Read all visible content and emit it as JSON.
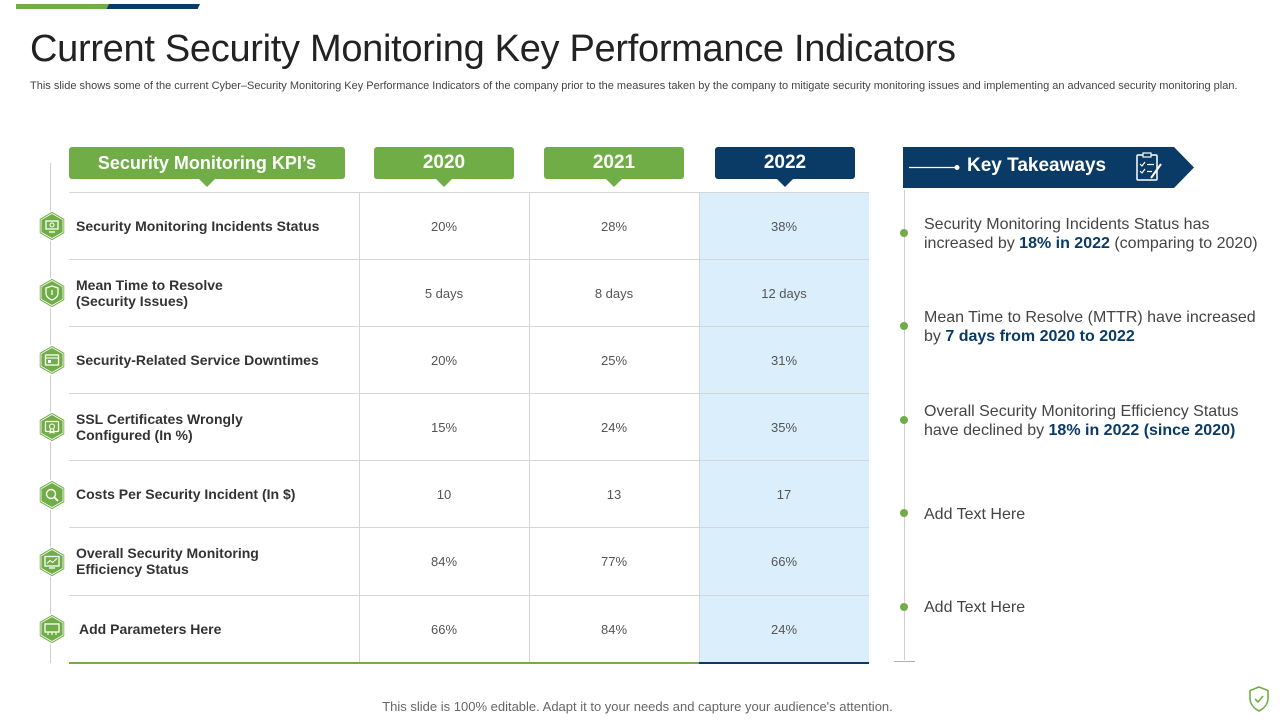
{
  "title": "Current Security Monitoring Key Performance Indicators",
  "subtitle": "This slide shows some of the current Cyber–Security Monitoring Key Performance Indicators of the company prior to the measures taken by the company to mitigate security monitoring issues and implementing an advanced security monitoring plan.",
  "table": {
    "headers": {
      "kpi": "Security Monitoring KPI’s",
      "y2020": "2020",
      "y2021": "2021",
      "y2022": "2022"
    },
    "rows": [
      {
        "label": "Security Monitoring Incidents Status",
        "icon": "monitor-gear-icon",
        "v2020": "20%",
        "v2021": "28%",
        "v2022": "38%"
      },
      {
        "label": "Mean Time to Resolve\n(Security Issues)",
        "icon": "shield-icon",
        "v2020": "5 days",
        "v2021": "8 days",
        "v2022": "12 days"
      },
      {
        "label": "Security-Related Service Downtimes",
        "icon": "server-icon",
        "v2020": "20%",
        "v2021": "25%",
        "v2022": "31%"
      },
      {
        "label": "SSL Certificates Wrongly\nConfigured (In %)",
        "icon": "certificate-icon",
        "v2020": "15%",
        "v2021": "24%",
        "v2022": "35%"
      },
      {
        "label": "Costs Per Security Incident (In $)",
        "icon": "magnifier-icon",
        "v2020": "10",
        "v2021": "13",
        "v2022": "17"
      },
      {
        "label": "Overall Security Monitoring\nEfficiency Status",
        "icon": "dashboard-icon",
        "v2020": "84%",
        "v2021": "77%",
        "v2022": "66%"
      },
      {
        "label": "Add Parameters Here",
        "icon": "network-icon",
        "v2020": "66%",
        "v2021": "84%",
        "v2022": "24%"
      }
    ]
  },
  "takeaways": {
    "title": "Key Takeaways",
    "items": [
      {
        "pre": "Security Monitoring Incidents Status has increased by ",
        "bold": "18% in 2022",
        "post": " (comparing to 2020)"
      },
      {
        "pre": "Mean Time to Resolve (MTTR) have increased by ",
        "bold": "7 days from 2020 to 2022",
        "post": ""
      },
      {
        "pre": "Overall Security Monitoring Efficiency Status have declined by ",
        "bold": "18% in 2022 (since 2020)",
        "post": ""
      },
      {
        "pre": "Add Text Here",
        "bold": "",
        "post": ""
      },
      {
        "pre": "Add Text Here",
        "bold": "",
        "post": ""
      }
    ]
  },
  "footer": "This slide is 100% editable. Adapt it to your needs and capture your audience's attention.",
  "colors": {
    "green": "#70ad47",
    "navy": "#0a3a66",
    "highlight": "#dbeefb"
  }
}
